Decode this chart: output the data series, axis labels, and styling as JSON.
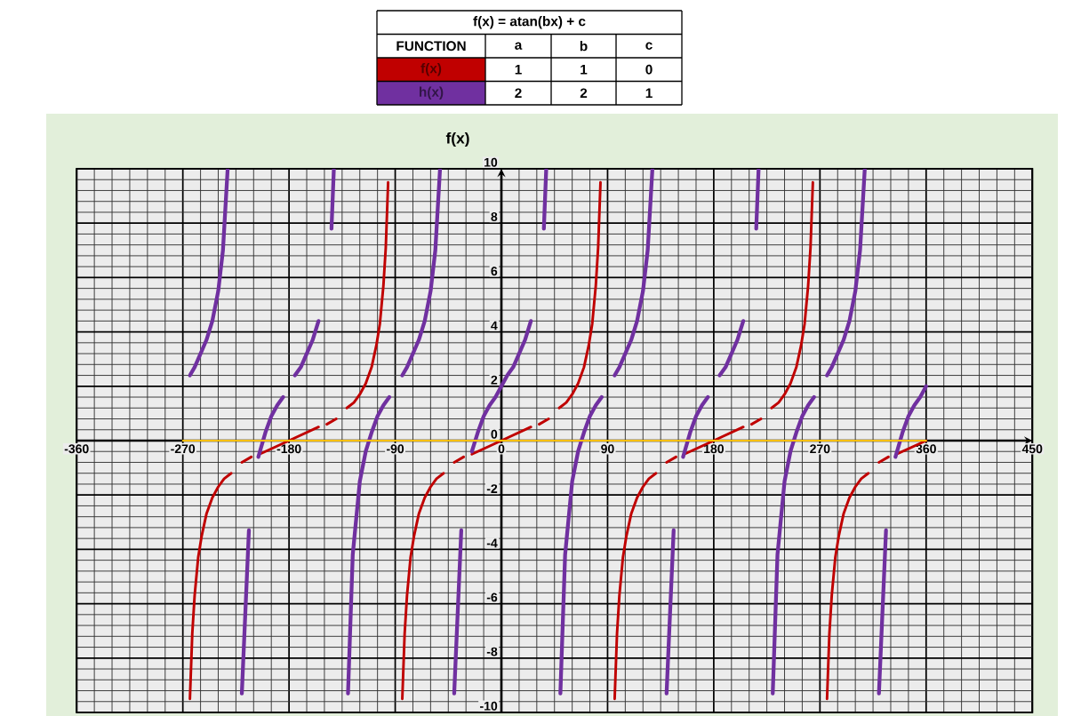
{
  "chart_data": {
    "type": "line",
    "title": "f(x)",
    "legend_title": "f(x) = atan(bx) + c",
    "legend": "top",
    "grid": true,
    "annotations": [
      "FUNCTION",
      "a",
      "b",
      "c",
      "1",
      "1",
      "0",
      "2",
      "2",
      "1"
    ],
    "xlim": [
      -360,
      450
    ],
    "ylim": [
      -10,
      10
    ],
    "xticks": [
      -360,
      -270,
      -180,
      -90,
      0,
      90,
      180,
      270,
      360,
      450
    ],
    "yticks": [
      -10,
      -8,
      -6,
      -4,
      -2,
      0,
      2,
      4,
      6,
      8,
      10
    ],
    "series": [
      {
        "name": "f(x)",
        "color": "#c00000",
        "x": [
          -264,
          -262,
          -260,
          -257,
          -254,
          -250,
          -245,
          -240,
          -235,
          -229,
          -224,
          -220,
          -212,
          -209,
          -205,
          -180,
          -155,
          -151,
          -148,
          -140,
          -135,
          -131,
          -125,
          -120,
          -115,
          -110,
          -106,
          -103,
          -100,
          -98,
          -96,
          -90,
          -84,
          -82,
          -80,
          -77,
          -74,
          -70,
          -65,
          -60,
          -55,
          -49,
          -44,
          -40,
          -32,
          -29,
          -25,
          0,
          25,
          29,
          32,
          40,
          44,
          49,
          55,
          60,
          65,
          70,
          74,
          77,
          80,
          82,
          84,
          90,
          96,
          98,
          100,
          103,
          106,
          110,
          115,
          120,
          125,
          131,
          136,
          140,
          148,
          151,
          155,
          180,
          205,
          209,
          212,
          220,
          224,
          229,
          235,
          240,
          245,
          250,
          254,
          257,
          260,
          262,
          264,
          270,
          276,
          278,
          280,
          283,
          286,
          290,
          295,
          300,
          305,
          311,
          316,
          320,
          328,
          331,
          335,
          360
        ],
        "values": [
          -9.5,
          -7.1,
          -5.7,
          -4.3,
          -3.5,
          -2.7,
          -2.1,
          -1.7,
          -1.4,
          -1.2,
          null,
          -0.8,
          -0.6,
          null,
          -0.5,
          0,
          0.5,
          null,
          0.6,
          0.8,
          null,
          1.2,
          1.4,
          1.7,
          2.1,
          2.7,
          3.5,
          4.3,
          5.7,
          7.1,
          9.5,
          null,
          -9.5,
          -7.1,
          -5.7,
          -4.3,
          -3.5,
          -2.7,
          -2.1,
          -1.7,
          -1.4,
          -1.2,
          null,
          -0.8,
          -0.6,
          null,
          -0.5,
          0,
          0.5,
          null,
          0.6,
          0.8,
          null,
          1.2,
          1.4,
          1.7,
          2.1,
          2.7,
          3.5,
          4.3,
          5.7,
          7.1,
          9.5,
          null,
          -9.5,
          -7.1,
          -5.7,
          -4.3,
          -3.5,
          -2.7,
          -2.1,
          -1.7,
          -1.4,
          -1.2,
          null,
          -0.8,
          -0.6,
          null,
          -0.5,
          0,
          0.5,
          null,
          0.6,
          0.8,
          null,
          1.2,
          1.4,
          1.7,
          2.1,
          2.7,
          3.5,
          4.3,
          5.7,
          7.1,
          9.5,
          null,
          -9.5,
          -7.1,
          -5.7,
          -4.3,
          -3.5,
          -2.7,
          -2.1,
          -1.7,
          -1.4,
          -1.2,
          null,
          -0.8,
          -0.6,
          null,
          -0.5,
          0
        ]
      },
      {
        "name": "h(x)",
        "color": "#7030a0",
        "x": [
          -264,
          -260,
          -255,
          -250,
          -245,
          -240,
          -236,
          -232,
          -226,
          -220,
          -214,
          -210,
          -206,
          -200,
          -195,
          -190,
          -185,
          -180,
          -175,
          -170,
          -165,
          -160,
          -155,
          -150,
          -144,
          -142,
          -136,
          -130,
          -126,
          -120,
          -115,
          -110,
          -105,
          -100,
          -95,
          -90,
          -84,
          -80,
          -75,
          -70,
          -65,
          -60,
          -56,
          -52,
          -46,
          -40,
          -34,
          -30,
          -25,
          -20,
          -15,
          -10,
          -5,
          0,
          5,
          10,
          15,
          20,
          25,
          30,
          36,
          38,
          44,
          50,
          54,
          60,
          65,
          70,
          75,
          80,
          85,
          90,
          96,
          100,
          105,
          110,
          115,
          120,
          124,
          128,
          134,
          140,
          146,
          150,
          154,
          160,
          165,
          170,
          175,
          180,
          185,
          190,
          195,
          200,
          205,
          210,
          216,
          218,
          224,
          230,
          234,
          240,
          245,
          250,
          255,
          260,
          265,
          270,
          276,
          280,
          285,
          290,
          295,
          300,
          304,
          308,
          314,
          320,
          326,
          330,
          334,
          340,
          345,
          350,
          355,
          360
        ],
        "values": [
          2.4,
          2.7,
          3.2,
          3.7,
          4.4,
          5.5,
          7.0,
          10,
          null,
          -9.3,
          -3.3,
          null,
          -0.6,
          0.3,
          0.9,
          1.3,
          1.6,
          null,
          2.4,
          2.7,
          3.2,
          3.7,
          4.4,
          null,
          7.8,
          10,
          null,
          -9.3,
          -4.2,
          -1.5,
          -0.4,
          0.3,
          0.9,
          1.3,
          1.6,
          null,
          2.4,
          2.7,
          3.2,
          3.7,
          4.4,
          5.5,
          7.0,
          10,
          null,
          -9.3,
          -3.3,
          null,
          -0.4,
          0.3,
          0.9,
          1.3,
          1.6,
          2,
          2.4,
          2.7,
          3.2,
          3.7,
          4.4,
          null,
          7.8,
          10,
          null,
          -9.3,
          -4.2,
          -1.5,
          -0.4,
          0.3,
          0.9,
          1.3,
          1.6,
          null,
          2.4,
          2.7,
          3.2,
          3.7,
          4.4,
          5.5,
          7.0,
          10,
          null,
          -9.3,
          -3.3,
          null,
          -0.6,
          0.3,
          0.9,
          1.3,
          1.6,
          null,
          2.4,
          2.7,
          3.2,
          3.7,
          4.4,
          null,
          7.8,
          10,
          null,
          -9.3,
          -4.2,
          -1.5,
          -0.4,
          0.3,
          0.9,
          1.3,
          1.6,
          null,
          2.4,
          2.7,
          3.2,
          3.7,
          4.4,
          5.5,
          7.0,
          10,
          null,
          -9.3,
          -3.3,
          null,
          -0.6,
          0.3,
          0.9,
          1.3,
          1.6,
          2.0
        ]
      },
      {
        "color": "#ffc000",
        "x": [
          -270,
          360
        ],
        "values": [
          0,
          0
        ]
      }
    ]
  }
}
